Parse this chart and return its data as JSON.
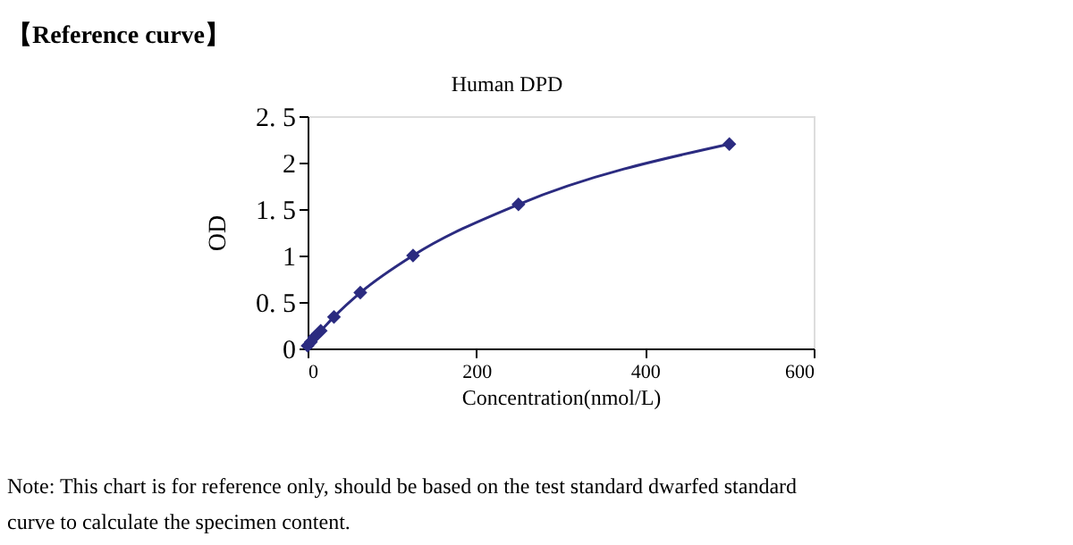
{
  "chart_data": {
    "type": "line",
    "title": "【Reference curve】",
    "subtitle": "Human DPD",
    "xlabel": "Concentration(nmol/L)",
    "ylabel": "OD",
    "x": [
      0,
      3.9,
      7.8,
      15.6,
      31.25,
      62.5,
      125,
      250,
      500
    ],
    "series": [
      {
        "color": "#2b2b80",
        "values": [
          0.03,
          0.07,
          0.12,
          0.19,
          0.34,
          0.6,
          1.0,
          1.55,
          2.2
        ]
      }
    ],
    "xlim": [
      0,
      600
    ],
    "xticks": [
      0,
      200,
      400,
      600
    ],
    "ylim": [
      0,
      2.5
    ],
    "yticks": [
      0,
      {
        "value": 0.5,
        "label": "0. 5"
      },
      1,
      {
        "value": 1.5,
        "label": "1. 5"
      },
      2,
      {
        "value": 2.5,
        "label": "2. 5"
      }
    ],
    "marker": "diamond",
    "line_style": "solid",
    "grid": false,
    "annotations": [
      "Note: This chart is for reference only, should be based on the test standard dwarfed standard curve to calculate the specimen content."
    ]
  }
}
